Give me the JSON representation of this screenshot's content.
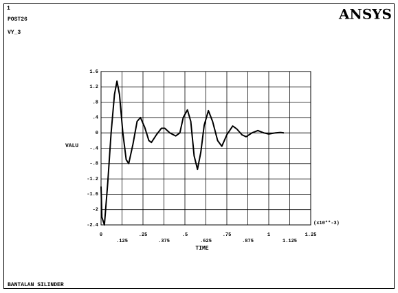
{
  "window_number": "1",
  "program": "POST26",
  "variable": "VY_3",
  "logo": "ANSYS",
  "footer": "BANTALAN SILINDER",
  "chart_data": {
    "type": "line",
    "ylabel": "VALU",
    "xlabel": "TIME",
    "x_multiplier": "(x10**-3)",
    "x": [
      0,
      0.005,
      0.02,
      0.04,
      0.06,
      0.08,
      0.095,
      0.11,
      0.13,
      0.15,
      0.165,
      0.19,
      0.215,
      0.235,
      0.26,
      0.285,
      0.3,
      0.33,
      0.36,
      0.38,
      0.41,
      0.445,
      0.47,
      0.49,
      0.515,
      0.535,
      0.555,
      0.575,
      0.595,
      0.615,
      0.64,
      0.665,
      0.695,
      0.72,
      0.75,
      0.785,
      0.81,
      0.84,
      0.865,
      0.9,
      0.935,
      0.97,
      1.0,
      1.04,
      1.07,
      1.09
    ],
    "series": [
      {
        "name": "VY_3",
        "color": "#000000",
        "values": [
          -1.4,
          -2.2,
          -2.4,
          -1.3,
          0.0,
          1.0,
          1.35,
          1.0,
          0.0,
          -0.7,
          -0.8,
          -0.3,
          0.3,
          0.4,
          0.15,
          -0.2,
          -0.25,
          -0.05,
          0.12,
          0.12,
          0.0,
          -0.08,
          0.0,
          0.4,
          0.6,
          0.3,
          -0.6,
          -0.95,
          -0.5,
          0.2,
          0.58,
          0.3,
          -0.2,
          -0.35,
          -0.05,
          0.18,
          0.1,
          -0.05,
          -0.1,
          0.0,
          0.06,
          0.0,
          -0.03,
          0.0,
          0.01,
          0.0
        ]
      }
    ],
    "xlim": [
      0,
      1.25
    ],
    "xticks": [
      0,
      {
        "value": 0.125,
        "label": ".125"
      },
      {
        "value": 0.25,
        "label": ".25"
      },
      {
        "value": 0.375,
        "label": ".375"
      },
      {
        "value": 0.5,
        "label": ".5"
      },
      {
        "value": 0.625,
        "label": ".625"
      },
      {
        "value": 0.75,
        "label": ".75"
      },
      {
        "value": 0.875,
        "label": ".875"
      },
      1,
      1.125,
      1.25
    ],
    "ylim": [
      -2.4,
      1.6
    ],
    "yticks": [
      1.6,
      1.2,
      {
        "value": 0.8,
        "label": ".8"
      },
      {
        "value": 0.4,
        "label": ".4"
      },
      0,
      {
        "value": -0.4,
        "label": "-.4"
      },
      {
        "value": -0.8,
        "label": "-.8"
      },
      -1.2,
      -1.6,
      -2,
      -2.4
    ],
    "grid": true
  }
}
